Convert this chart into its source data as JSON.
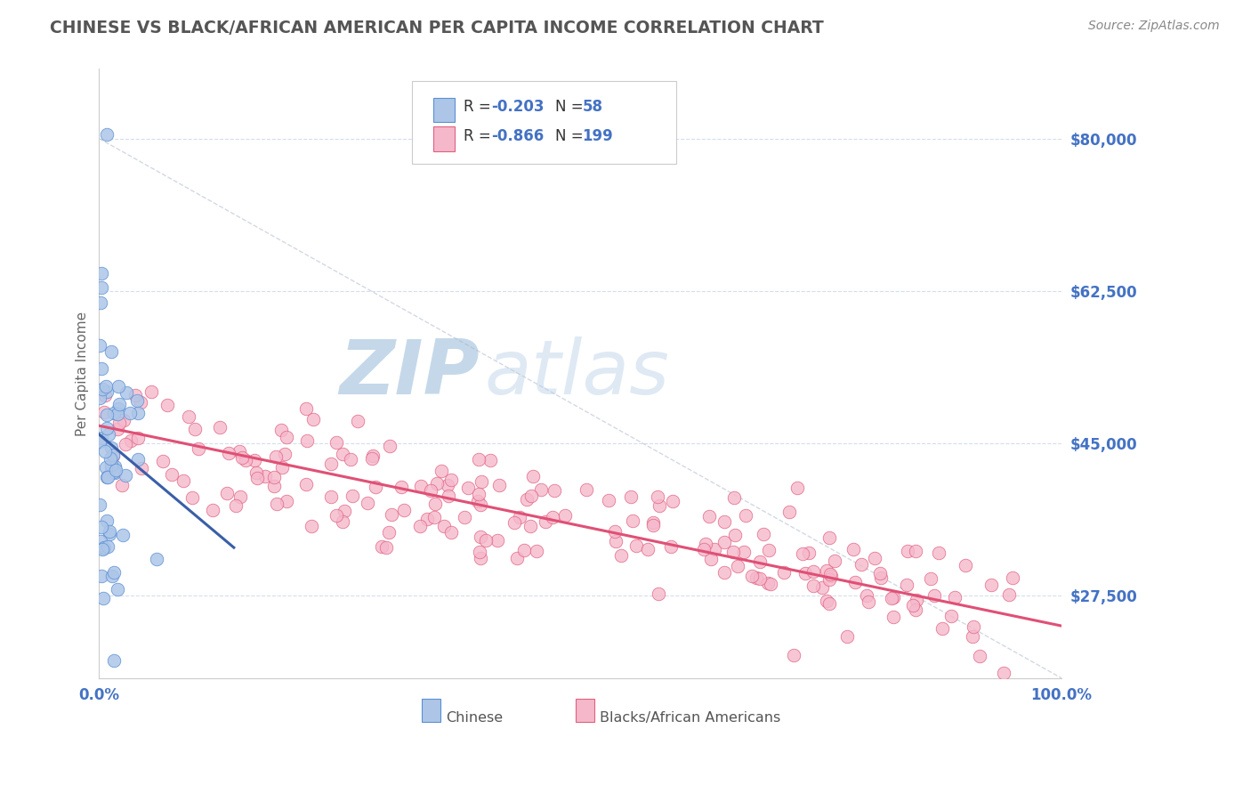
{
  "title": "CHINESE VS BLACK/AFRICAN AMERICAN PER CAPITA INCOME CORRELATION CHART",
  "source_text": "Source: ZipAtlas.com",
  "ylabel": "Per Capita Income",
  "xlim": [
    0.0,
    100.0
  ],
  "ylim": [
    18000,
    88000
  ],
  "yticks": [
    27500,
    45000,
    62500,
    80000
  ],
  "ytick_labels": [
    "$27,500",
    "$45,000",
    "$62,500",
    "$80,000"
  ],
  "xtick_labels": [
    "0.0%",
    "100.0%"
  ],
  "color_chinese_fill": "#adc6e8",
  "color_chinese_edge": "#5b8fd4",
  "color_chinese_line": "#3a5fa8",
  "color_black_fill": "#f5b8cb",
  "color_black_edge": "#e06080",
  "color_black_line": "#e05075",
  "color_dashed": "#c0c8d8",
  "color_title": "#555555",
  "color_tick_labels": "#4472c4",
  "color_source": "#888888",
  "watermark_zip": "#b0c8e8",
  "watermark_atlas": "#c8daf0",
  "legend_label_chinese": "Chinese",
  "legend_label_black": "Blacks/African Americans",
  "background_color": "#ffffff",
  "grid_color": "#d5dded",
  "seed": 12345,
  "n_chinese": 58,
  "n_black": 199
}
